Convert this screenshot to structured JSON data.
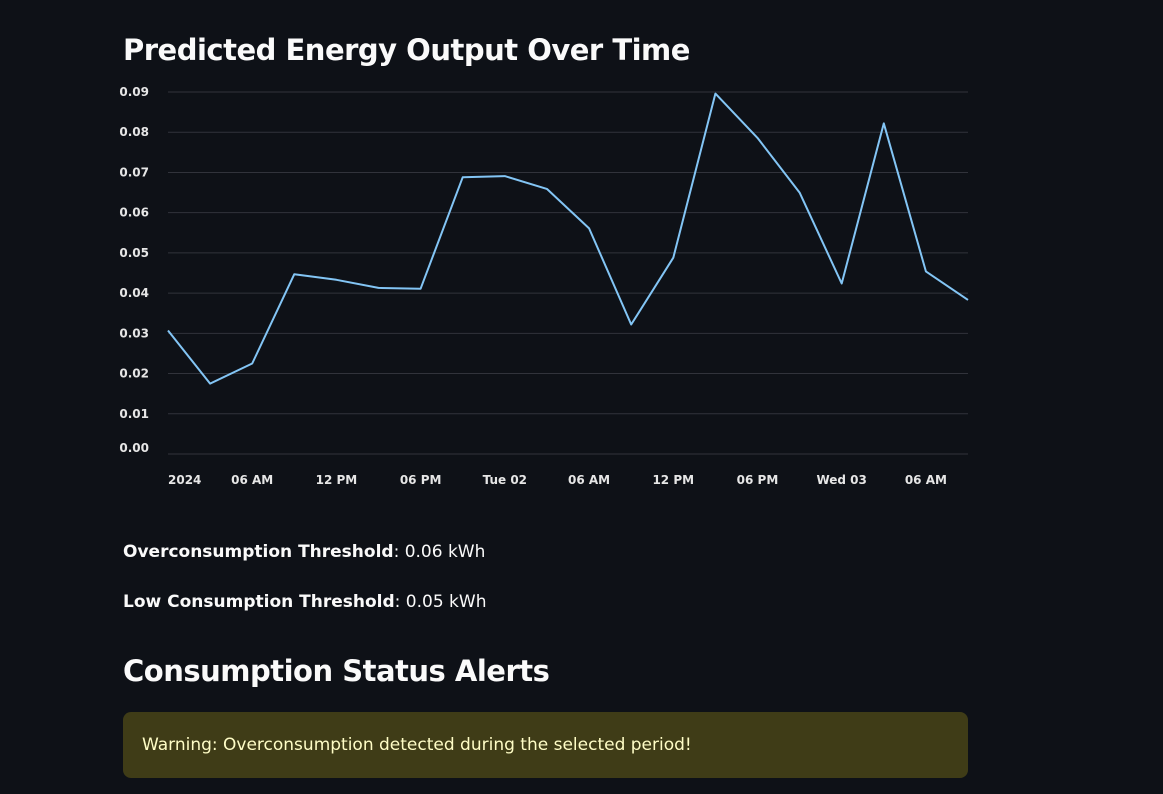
{
  "chart_section": {
    "title": "Predicted Energy Output Over Time"
  },
  "chart_data": {
    "type": "line",
    "title": "Predicted Energy Output Over Time",
    "xlabel": "",
    "ylabel": "",
    "ylim": [
      0,
      0.09
    ],
    "y_ticks": [
      "0.00",
      "0.01",
      "0.02",
      "0.03",
      "0.04",
      "0.05",
      "0.06",
      "0.07",
      "0.08",
      "0.09"
    ],
    "x_ticks": [
      "2024",
      "06 AM",
      "12 PM",
      "06 PM",
      "Tue 02",
      "06 AM",
      "12 PM",
      "06 PM",
      "Wed 03",
      "06 AM"
    ],
    "x_hours_of_ticks": [
      0,
      6,
      12,
      18,
      24,
      30,
      36,
      42,
      48,
      54
    ],
    "x_range_hours": [
      0,
      57
    ],
    "series": [
      {
        "name": "Predicted Energy Output",
        "color": "#83c5f5",
        "x_hours": [
          0,
          3,
          6,
          9,
          12,
          15,
          18,
          21,
          24,
          27,
          30,
          33,
          36,
          39,
          42,
          45,
          48,
          51,
          54,
          57
        ],
        "values": [
          0.0307,
          0.0175,
          0.0225,
          0.0447,
          0.0433,
          0.0413,
          0.0411,
          0.0688,
          0.0691,
          0.0659,
          0.0561,
          0.0322,
          0.0488,
          0.0896,
          0.0786,
          0.065,
          0.0424,
          0.0822,
          0.0454,
          0.0383
        ]
      }
    ],
    "grid": true
  },
  "thresholds": {
    "over_label": "Overconsumption Threshold",
    "over_value": ": 0.06 kWh",
    "low_label": "Low Consumption Threshold",
    "low_value": ": 0.05 kWh"
  },
  "alerts_section": {
    "title": "Consumption Status Alerts",
    "warning_text": "Warning: Overconsumption detected during the selected period!",
    "warning_bg": "#3f3c17",
    "warning_color": "#fffdc6"
  }
}
